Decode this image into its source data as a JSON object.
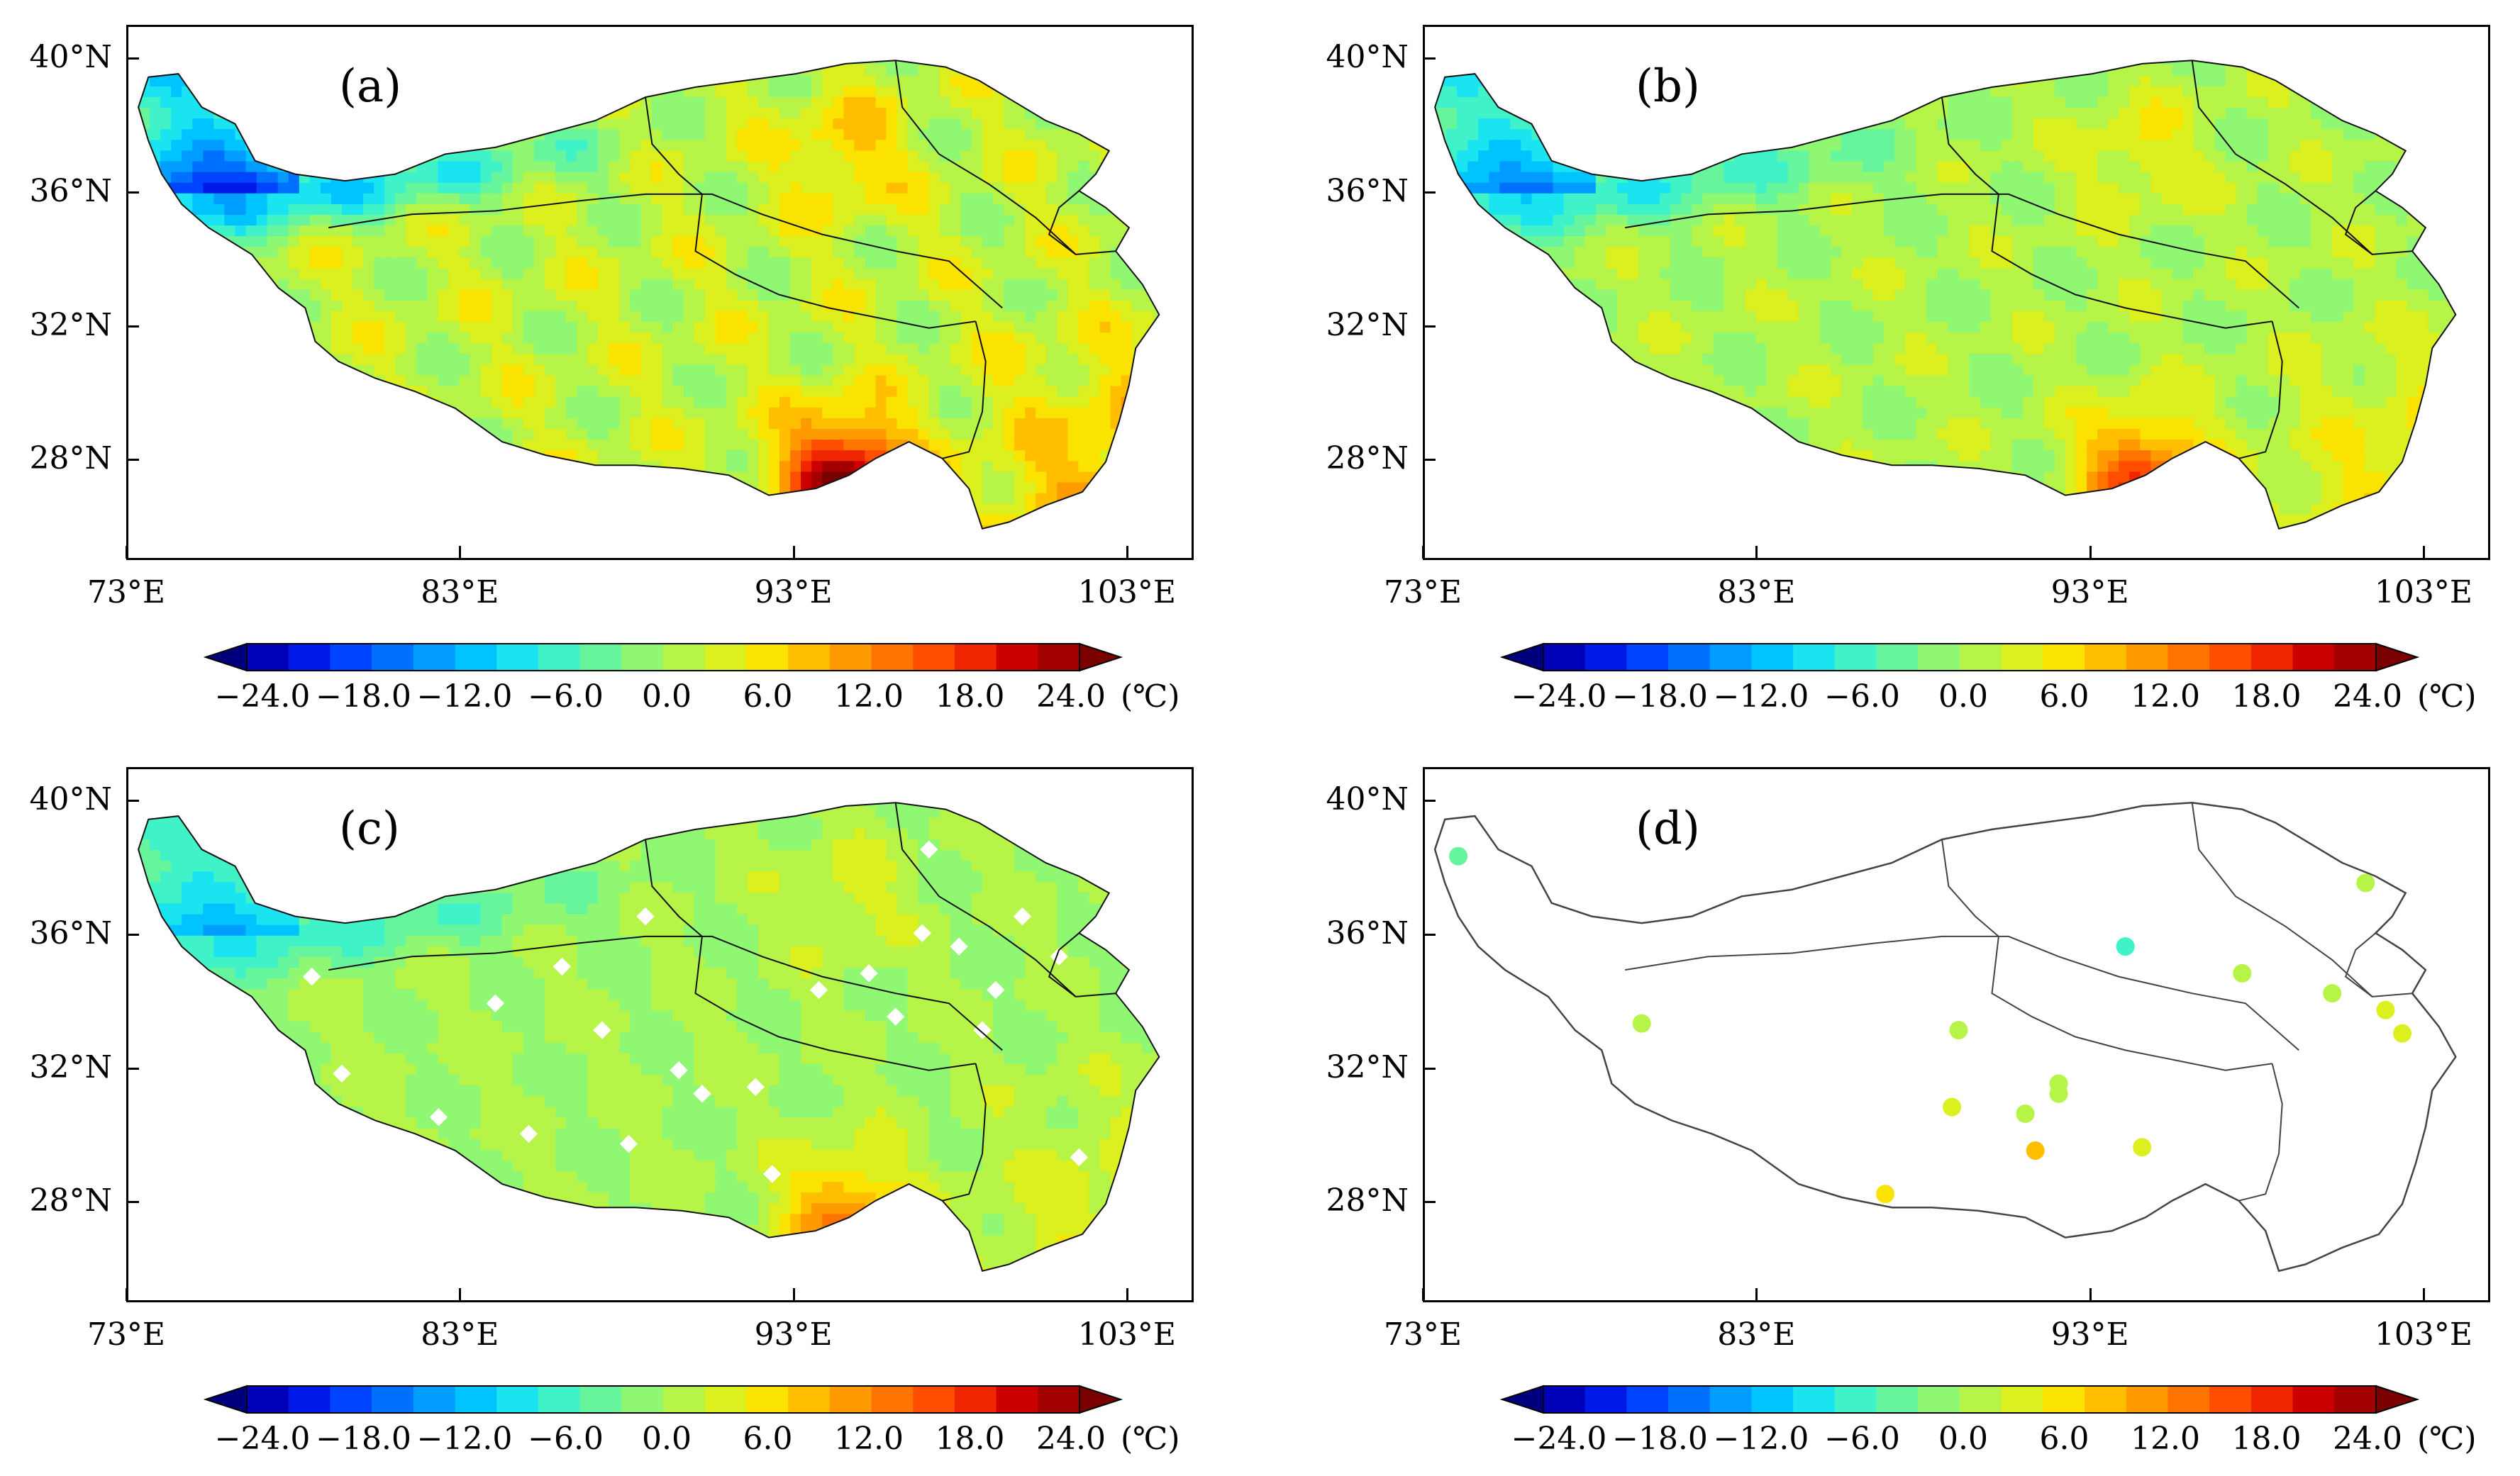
{
  "panels": [
    {
      "label": "(a)",
      "mode": "field",
      "intensity": 1.0
    },
    {
      "label": "(b)",
      "mode": "field",
      "intensity": 0.7
    },
    {
      "label": "(c)",
      "mode": "field-gaps",
      "intensity": 0.55
    },
    {
      "label": "(d)",
      "mode": "stations",
      "intensity": 0.5
    }
  ],
  "axes": {
    "lat_labels": [
      "40°N",
      "36°N",
      "32°N",
      "28°N"
    ],
    "lat_values": [
      40,
      36,
      32,
      28
    ],
    "lon_labels": [
      "73°E",
      "83°E",
      "93°E",
      "103°E"
    ],
    "lon_values": [
      73,
      83,
      93,
      103
    ],
    "lon_range": [
      73,
      105
    ],
    "lat_range": [
      25,
      41
    ]
  },
  "colorbar": {
    "tick_labels": [
      "−24.0",
      "−18.0",
      "−12.0",
      "−6.0",
      "0.0",
      "6.0",
      "12.0",
      "18.0",
      "24.0"
    ],
    "unit": "(℃)",
    "colors": [
      "#00007f",
      "#0000b8",
      "#0019e8",
      "#0044ff",
      "#0070ff",
      "#009cff",
      "#00c4ff",
      "#1ae4f0",
      "#3ff2c8",
      "#66f59c",
      "#8ff772",
      "#b6f447",
      "#dcf01f",
      "#fbe300",
      "#ffbf00",
      "#ff9a00",
      "#ff7400",
      "#ff4e00",
      "#f02600",
      "#cc0000",
      "#a30000",
      "#7a0000"
    ]
  },
  "stations": [
    {
      "lon": 74.0,
      "lat": 38.4,
      "value": -3.0
    },
    {
      "lon": 79.5,
      "lat": 33.4,
      "value": 2.0
    },
    {
      "lon": 86.8,
      "lat": 28.3,
      "value": 5.0
    },
    {
      "lon": 89.0,
      "lat": 33.2,
      "value": 0.5
    },
    {
      "lon": 88.8,
      "lat": 30.9,
      "value": 3.0
    },
    {
      "lon": 91.0,
      "lat": 30.7,
      "value": 1.5
    },
    {
      "lon": 91.3,
      "lat": 29.6,
      "value": 9.0
    },
    {
      "lon": 92.0,
      "lat": 31.3,
      "value": 2.0
    },
    {
      "lon": 92.0,
      "lat": 31.6,
      "value": 1.0
    },
    {
      "lon": 94.0,
      "lat": 35.7,
      "value": -5.0
    },
    {
      "lon": 94.5,
      "lat": 29.7,
      "value": 4.0
    },
    {
      "lon": 97.5,
      "lat": 34.9,
      "value": 1.5
    },
    {
      "lon": 100.2,
      "lat": 34.3,
      "value": 2.0
    },
    {
      "lon": 101.2,
      "lat": 37.6,
      "value": 0.0
    },
    {
      "lon": 101.8,
      "lat": 33.8,
      "value": 3.0
    },
    {
      "lon": 102.3,
      "lat": 33.1,
      "value": 2.5
    }
  ]
}
